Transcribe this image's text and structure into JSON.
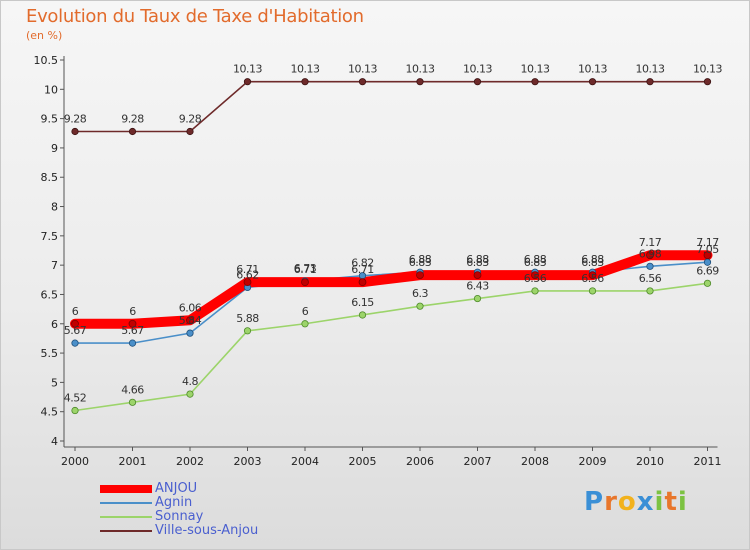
{
  "header": {
    "title": "Evolution du Taux de Taxe d'Habitation",
    "unit": "(en %)"
  },
  "chart_data": {
    "type": "line",
    "title": "Evolution du Taux de Taxe d'Habitation",
    "ylabel": "(en %)",
    "xlabel": "",
    "categories": [
      "2000",
      "2001",
      "2002",
      "2003",
      "2004",
      "2005",
      "2006",
      "2007",
      "2008",
      "2009",
      "2010",
      "2011"
    ],
    "ylim": [
      4,
      10.5
    ],
    "yticks": [
      "4",
      "4.5",
      "5",
      "5.5",
      "6",
      "6.5",
      "7",
      "7.5",
      "8",
      "8.5",
      "9",
      "9.5",
      "10",
      "10.5"
    ],
    "grid": false,
    "legend_position": "bottom-left",
    "series": [
      {
        "name": "ANJOU",
        "color": "#ff0000",
        "values": [
          6,
          6,
          6.06,
          6.71,
          6.71,
          6.71,
          6.83,
          6.83,
          6.83,
          6.83,
          7.17,
          7.17
        ],
        "labels": [
          "6",
          "6",
          "6.06",
          "6.71",
          "6.71",
          "6.71",
          "6.83",
          "6.83",
          "6.83",
          "6.83",
          "7.17",
          "7.17"
        ]
      },
      {
        "name": "Agnin",
        "color": "#4a8fc9",
        "values": [
          5.67,
          5.67,
          5.84,
          6.62,
          6.73,
          6.82,
          6.88,
          6.88,
          6.88,
          6.88,
          6.98,
          7.05
        ],
        "labels": [
          "5.67",
          "5.67",
          "5.84",
          "6.62",
          "6.73",
          "6.82",
          "6.88",
          "6.88",
          "6.88",
          "6.88",
          "6.98",
          "7.05"
        ]
      },
      {
        "name": "Sonnay",
        "color": "#9cd46a",
        "values": [
          4.52,
          4.66,
          4.8,
          5.88,
          6,
          6.15,
          6.3,
          6.43,
          6.56,
          6.56,
          6.56,
          6.69
        ],
        "labels": [
          "4.52",
          "4.66",
          "4.8",
          "5.88",
          "6",
          "6.15",
          "6.3",
          "6.43",
          "6.56",
          "6.56",
          "6.56",
          "6.69"
        ]
      },
      {
        "name": "Ville-sous-Anjou",
        "color": "#6e2a2a",
        "values": [
          9.28,
          9.28,
          9.28,
          10.13,
          10.13,
          10.13,
          10.13,
          10.13,
          10.13,
          10.13,
          10.13,
          10.13
        ],
        "labels": [
          "9.28",
          "9.28",
          "9.28",
          "10.13",
          "10.13",
          "10.13",
          "10.13",
          "10.13",
          "10.13",
          "10.13",
          "10.13",
          "10.13"
        ]
      }
    ]
  },
  "legend": {
    "items": [
      {
        "label": "ANJOU",
        "color": "#ff0000"
      },
      {
        "label": "Agnin",
        "color": "#4a8fc9"
      },
      {
        "label": "Sonnay",
        "color": "#9cd46a"
      },
      {
        "label": "Ville-sous-Anjou",
        "color": "#6e2a2a"
      }
    ]
  },
  "logo": {
    "text": "Proxiti",
    "letters": [
      "P",
      "r",
      "o",
      "x",
      "i",
      "t",
      "i"
    ],
    "colors": [
      "#3a8fd6",
      "#e8762b",
      "#f2b21d",
      "#3a8fd6",
      "#7cc242",
      "#e8762b",
      "#7cc242"
    ]
  }
}
